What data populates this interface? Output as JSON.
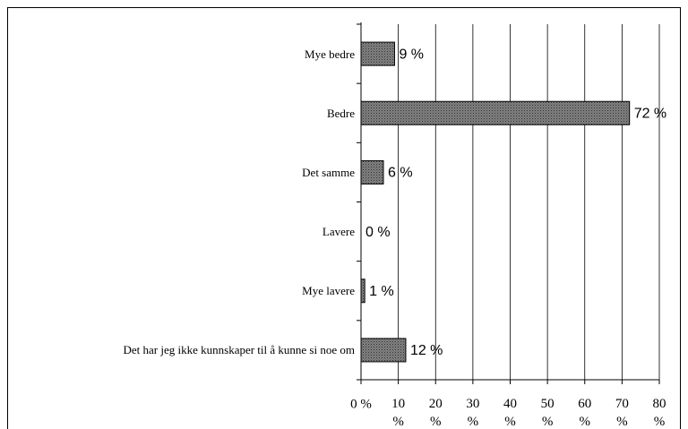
{
  "chart_data": {
    "type": "bar",
    "orientation": "horizontal",
    "categories": [
      "Mye bedre",
      "Bedre",
      "Det samme",
      "Lavere",
      "Mye lavere",
      "Det har jeg ikke kunnskaper til å kunne si noe om"
    ],
    "values": [
      9,
      72,
      6,
      0,
      1,
      12
    ],
    "value_labels": [
      "9 %",
      "72 %",
      "6 %",
      "0 %",
      "1 %",
      "12 %"
    ],
    "color": "#808080",
    "xlim": [
      0,
      80
    ],
    "xticks": [
      {
        "value": 0,
        "label": "0 %"
      },
      {
        "value": 10,
        "label": "10 %"
      },
      {
        "value": 20,
        "label": "20 %"
      },
      {
        "value": 30,
        "label": "30 %"
      },
      {
        "value": 40,
        "label": "40 %"
      },
      {
        "value": 50,
        "label": "50 %"
      },
      {
        "value": 60,
        "label": "60 %"
      },
      {
        "value": 70,
        "label": "70 %"
      },
      {
        "value": 80,
        "label": "80 %"
      }
    ],
    "grid": true
  }
}
